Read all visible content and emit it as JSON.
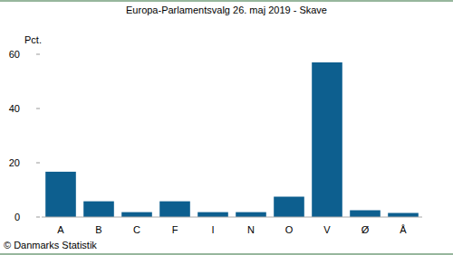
{
  "chart_data": {
    "type": "bar",
    "title": "Europa-Parlamentsvalg 26. maj 2019 - Skave",
    "y_label": "Pct.",
    "source": "© Danmarks Statistik",
    "categories": [
      "A",
      "B",
      "C",
      "F",
      "I",
      "N",
      "O",
      "V",
      "Ø",
      "Å"
    ],
    "values": [
      16.7,
      5.8,
      1.8,
      5.8,
      1.8,
      1.8,
      7.5,
      57,
      2.5,
      1.5
    ],
    "color": "#0d5f8f",
    "ylim": [
      0,
      60
    ],
    "yticks": [
      0,
      20,
      40,
      60
    ],
    "grid": false
  }
}
